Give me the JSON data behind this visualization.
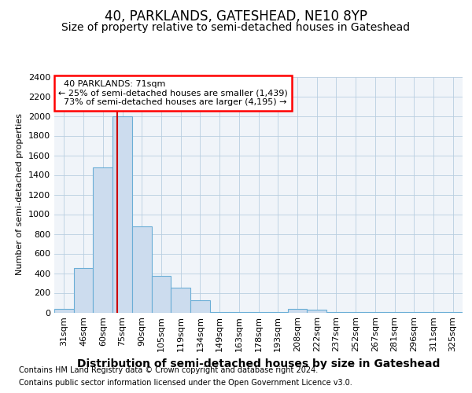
{
  "title1": "40, PARKLANDS, GATESHEAD, NE10 8YP",
  "title2": "Size of property relative to semi-detached houses in Gateshead",
  "xlabel": "Distribution of semi-detached houses by size in Gateshead",
  "ylabel": "Number of semi-detached properties",
  "categories": [
    "31sqm",
    "46sqm",
    "60sqm",
    "75sqm",
    "90sqm",
    "105sqm",
    "119sqm",
    "134sqm",
    "149sqm",
    "163sqm",
    "178sqm",
    "193sqm",
    "208sqm",
    "222sqm",
    "237sqm",
    "252sqm",
    "267sqm",
    "281sqm",
    "296sqm",
    "311sqm",
    "325sqm"
  ],
  "values": [
    40,
    450,
    1480,
    2000,
    880,
    375,
    255,
    125,
    5,
    5,
    5,
    5,
    40,
    30,
    2,
    2,
    2,
    2,
    2,
    2,
    2
  ],
  "bar_color": "#ccdcee",
  "bar_edge_color": "#6baed6",
  "property_line_color": "#cc0000",
  "property_line_x": 2.73,
  "property_label": "40 PARKLANDS: 71sqm",
  "smaller_pct": "25%",
  "smaller_count": "1,439",
  "larger_pct": "73%",
  "larger_count": "4,195",
  "ylim": [
    0,
    2400
  ],
  "yticks": [
    0,
    200,
    400,
    600,
    800,
    1000,
    1200,
    1400,
    1600,
    1800,
    2000,
    2200,
    2400
  ],
  "footnote1": "Contains HM Land Registry data © Crown copyright and database right 2024.",
  "footnote2": "Contains public sector information licensed under the Open Government Licence v3.0.",
  "background_color": "#ffffff",
  "plot_bg_color": "#f0f4f9",
  "grid_color": "#b8cee0",
  "title1_fontsize": 12,
  "title2_fontsize": 10,
  "xlabel_fontsize": 10,
  "ylabel_fontsize": 8,
  "tick_fontsize": 8,
  "annot_fontsize": 8
}
